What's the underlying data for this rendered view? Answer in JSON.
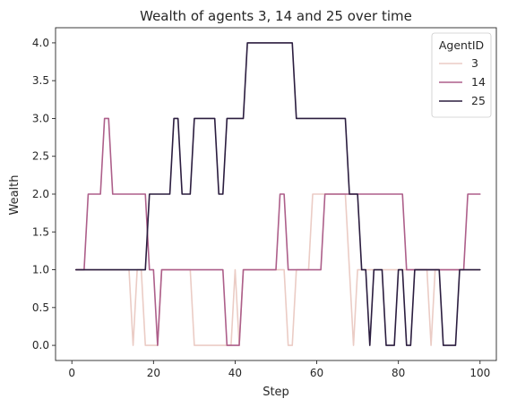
{
  "chart_data": {
    "type": "line",
    "title": "Wealth of agents 3, 14 and 25 over time",
    "xlabel": "Step",
    "ylabel": "Wealth",
    "xlim": [
      -4,
      104
    ],
    "ylim": [
      -0.2,
      4.2
    ],
    "xticks": [
      0,
      20,
      40,
      60,
      80,
      100
    ],
    "yticks": [
      0.0,
      0.5,
      1.0,
      1.5,
      2.0,
      2.5,
      3.0,
      3.5,
      4.0
    ],
    "yticklabels": [
      "0.0",
      "0.5",
      "1.0",
      "1.5",
      "2.0",
      "2.5",
      "3.0",
      "3.5",
      "4.0"
    ],
    "grid": false,
    "legend": {
      "title": "AgentID",
      "placement": "top-right"
    },
    "series": [
      {
        "name": "3",
        "color": "#ebccc5",
        "x": [
          1,
          2,
          3,
          4,
          5,
          6,
          7,
          8,
          9,
          10,
          11,
          12,
          13,
          14,
          15,
          16,
          17,
          18,
          19,
          20,
          21,
          22,
          23,
          24,
          25,
          26,
          27,
          28,
          29,
          30,
          31,
          32,
          33,
          34,
          35,
          36,
          37,
          38,
          39,
          40,
          41,
          42,
          43,
          44,
          45,
          46,
          47,
          48,
          49,
          50,
          51,
          52,
          53,
          54,
          55,
          56,
          57,
          58,
          59,
          60,
          61,
          62,
          63,
          64,
          65,
          66,
          67,
          68,
          69,
          70,
          71,
          72,
          73,
          74,
          75,
          76,
          77,
          78,
          79,
          80,
          81,
          82,
          83,
          84,
          85,
          86,
          87,
          88,
          89,
          90,
          91,
          92,
          93,
          94,
          95,
          96,
          97,
          98,
          99,
          100
        ],
        "values": [
          1,
          1,
          1,
          1,
          1,
          1,
          1,
          1,
          1,
          1,
          1,
          1,
          1,
          1,
          0,
          1,
          1,
          0,
          0,
          0,
          0,
          1,
          1,
          1,
          1,
          1,
          1,
          1,
          1,
          0,
          0,
          0,
          0,
          0,
          0,
          0,
          0,
          0,
          0,
          1,
          0,
          1,
          1,
          1,
          1,
          1,
          1,
          1,
          1,
          1,
          1,
          1,
          0,
          0,
          1,
          1,
          1,
          1,
          2,
          2,
          2,
          2,
          2,
          2,
          2,
          2,
          2,
          1,
          0,
          1,
          1,
          1,
          1,
          1,
          1,
          1,
          1,
          1,
          1,
          1,
          1,
          1,
          1,
          1,
          1,
          1,
          1,
          0,
          1,
          1,
          1,
          1,
          1,
          1,
          1,
          1,
          1,
          1,
          1,
          1
        ]
      },
      {
        "name": "14",
        "color": "#ad5f8a",
        "x": [
          1,
          2,
          3,
          4,
          5,
          6,
          7,
          8,
          9,
          10,
          11,
          12,
          13,
          14,
          15,
          16,
          17,
          18,
          19,
          20,
          21,
          22,
          23,
          24,
          25,
          26,
          27,
          28,
          29,
          30,
          31,
          32,
          33,
          34,
          35,
          36,
          37,
          38,
          39,
          40,
          41,
          42,
          43,
          44,
          45,
          46,
          47,
          48,
          49,
          50,
          51,
          52,
          53,
          54,
          55,
          56,
          57,
          58,
          59,
          60,
          61,
          62,
          63,
          64,
          65,
          66,
          67,
          68,
          69,
          70,
          71,
          72,
          73,
          74,
          75,
          76,
          77,
          78,
          79,
          80,
          81,
          82,
          83,
          84,
          85,
          86,
          87,
          88,
          89,
          90,
          91,
          92,
          93,
          94,
          95,
          96,
          97,
          98,
          99,
          100
        ],
        "values": [
          1,
          1,
          1,
          2,
          2,
          2,
          2,
          3,
          3,
          2,
          2,
          2,
          2,
          2,
          2,
          2,
          2,
          2,
          1,
          1,
          0,
          1,
          1,
          1,
          1,
          1,
          1,
          1,
          1,
          1,
          1,
          1,
          1,
          1,
          1,
          1,
          1,
          0,
          0,
          0,
          0,
          1,
          1,
          1,
          1,
          1,
          1,
          1,
          1,
          1,
          2,
          2,
          1,
          1,
          1,
          1,
          1,
          1,
          1,
          1,
          1,
          2,
          2,
          2,
          2,
          2,
          2,
          2,
          2,
          2,
          2,
          2,
          2,
          2,
          2,
          2,
          2,
          2,
          2,
          2,
          2,
          1,
          1,
          1,
          1,
          1,
          1,
          1,
          1,
          1,
          1,
          1,
          1,
          1,
          1,
          1,
          2,
          2,
          2,
          2
        ]
      },
      {
        "name": "25",
        "color": "#2b1d3f",
        "x": [
          1,
          2,
          3,
          4,
          5,
          6,
          7,
          8,
          9,
          10,
          11,
          12,
          13,
          14,
          15,
          16,
          17,
          18,
          19,
          20,
          21,
          22,
          23,
          24,
          25,
          26,
          27,
          28,
          29,
          30,
          31,
          32,
          33,
          34,
          35,
          36,
          37,
          38,
          39,
          40,
          41,
          42,
          43,
          44,
          45,
          46,
          47,
          48,
          49,
          50,
          51,
          52,
          53,
          54,
          55,
          56,
          57,
          58,
          59,
          60,
          61,
          62,
          63,
          64,
          65,
          66,
          67,
          68,
          69,
          70,
          71,
          72,
          73,
          74,
          75,
          76,
          77,
          78,
          79,
          80,
          81,
          82,
          83,
          84,
          85,
          86,
          87,
          88,
          89,
          90,
          91,
          92,
          93,
          94,
          95,
          96,
          97,
          98,
          99,
          100
        ],
        "values": [
          1,
          1,
          1,
          1,
          1,
          1,
          1,
          1,
          1,
          1,
          1,
          1,
          1,
          1,
          1,
          1,
          1,
          1,
          2,
          2,
          2,
          2,
          2,
          2,
          3,
          3,
          2,
          2,
          2,
          3,
          3,
          3,
          3,
          3,
          3,
          2,
          2,
          3,
          3,
          3,
          3,
          3,
          4,
          4,
          4,
          4,
          4,
          4,
          4,
          4,
          4,
          4,
          4,
          4,
          3,
          3,
          3,
          3,
          3,
          3,
          3,
          3,
          3,
          3,
          3,
          3,
          3,
          2,
          2,
          2,
          1,
          1,
          0,
          1,
          1,
          1,
          0,
          0,
          0,
          1,
          1,
          0,
          0,
          1,
          1,
          1,
          1,
          1,
          1,
          1,
          0,
          0,
          0,
          0,
          1,
          1,
          1,
          1,
          1,
          1
        ]
      }
    ]
  }
}
